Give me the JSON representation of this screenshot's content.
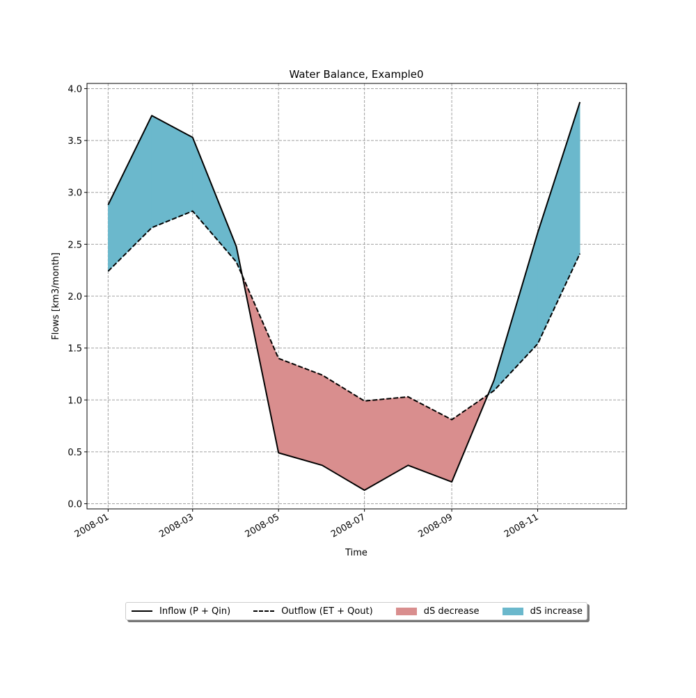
{
  "chart_data": {
    "type": "area",
    "title": "Water Balance, Example0",
    "xlabel": "Time",
    "ylabel": "Flows [km3/month]",
    "x": [
      "2008-01",
      "2008-02",
      "2008-03",
      "2008-04",
      "2008-05",
      "2008-06",
      "2008-07",
      "2008-08",
      "2008-09",
      "2008-10",
      "2008-11",
      "2008-12"
    ],
    "xticks": [
      "2008-01",
      "2008-03",
      "2008-05",
      "2008-07",
      "2008-09",
      "2008-11"
    ],
    "yticks": [
      "0.0",
      "0.5",
      "1.0",
      "1.5",
      "2.0",
      "2.5",
      "3.0",
      "3.5",
      "4.0"
    ],
    "ylim": [
      -0.05,
      4.05
    ],
    "xlim": [
      "2007-12-17",
      "2009-01-03"
    ],
    "grid": true,
    "legend_placement": "bottom-center",
    "series": [
      {
        "name": "Inflow (P + Qin)",
        "style": "solid",
        "color": "#000000",
        "values": [
          2.88,
          3.74,
          3.53,
          2.48,
          0.49,
          0.37,
          0.13,
          0.37,
          0.21,
          1.19,
          2.61,
          3.87
        ]
      },
      {
        "name": "Outflow (ET + Qout)",
        "style": "dashed",
        "color": "#000000",
        "values": [
          2.24,
          2.66,
          2.82,
          2.33,
          1.4,
          1.24,
          0.99,
          1.03,
          0.81,
          1.09,
          1.54,
          2.41
        ]
      }
    ],
    "fills": [
      {
        "name": "dS decrease",
        "color": "#d98e8e"
      },
      {
        "name": "dS increase",
        "color": "#6bb8cc"
      }
    ]
  }
}
